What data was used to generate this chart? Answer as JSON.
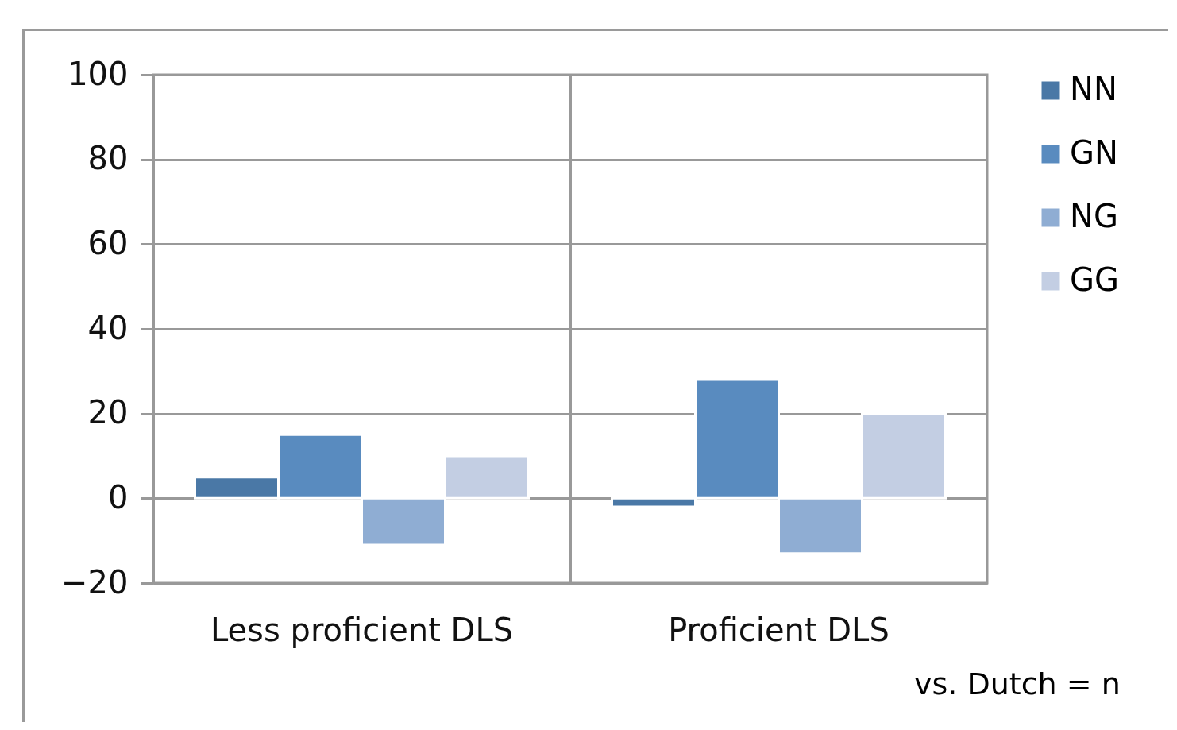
{
  "chart_data": {
    "type": "bar",
    "categories": [
      "Less proficient DLS",
      "Proficient DLS"
    ],
    "series": [
      {
        "name": "NN",
        "color": "#4a78a6",
        "values": [
          5,
          -2
        ]
      },
      {
        "name": "GN",
        "color": "#598bbf",
        "values": [
          15,
          28
        ]
      },
      {
        "name": "NG",
        "color": "#8fadd3",
        "values": [
          -11,
          -13
        ]
      },
      {
        "name": "GG",
        "color": "#c3cee3",
        "values": [
          10,
          20
        ]
      }
    ],
    "ylim": [
      -20,
      100
    ],
    "yticks": [
      -20,
      0,
      20,
      40,
      60,
      80,
      100
    ],
    "grid": true,
    "legend": "right",
    "annotations": [
      "vs. Dutch = n"
    ]
  }
}
